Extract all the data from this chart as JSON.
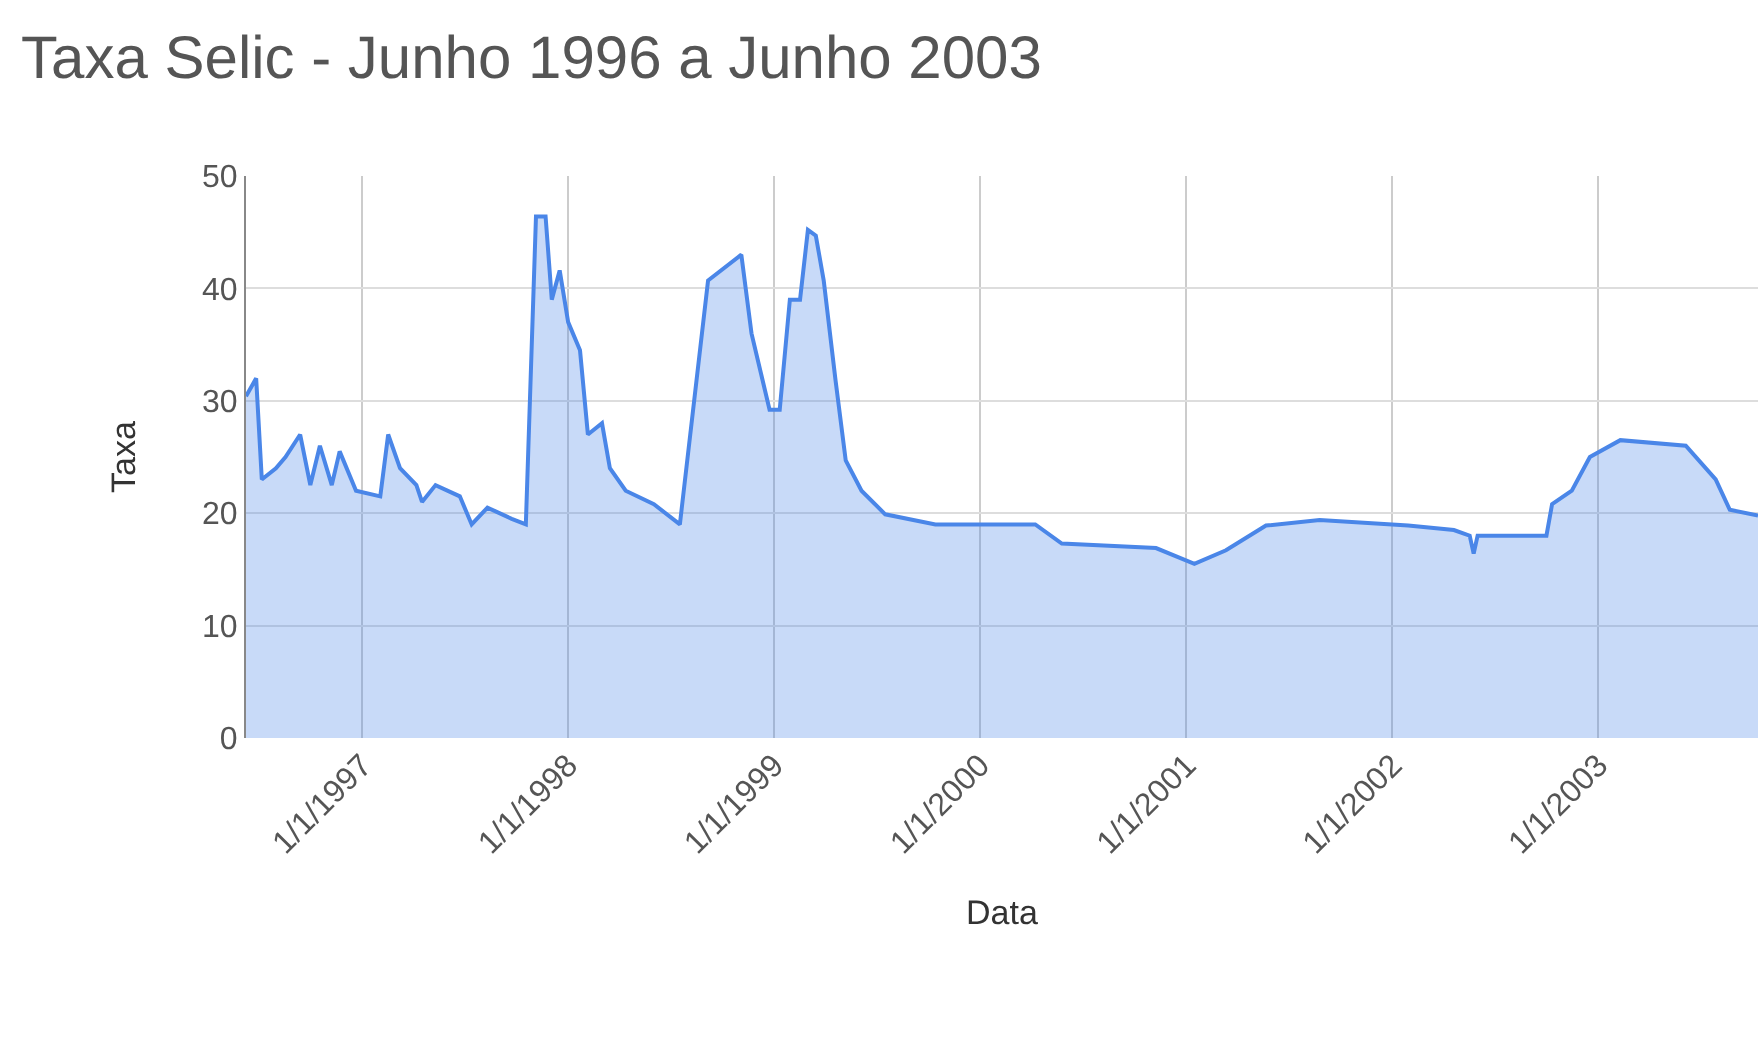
{
  "chart_data": {
    "type": "area",
    "title": "Taxa Selic - Junho 1996 a Junho 2003",
    "xlabel": "Data",
    "ylabel": "Taxa",
    "x": [
      "1996-06-09",
      "1996-06-27",
      "1996-07-07",
      "1996-08-01",
      "1996-08-18",
      "1996-09-13",
      "1996-10-01",
      "1996-10-18",
      "1996-11-08",
      "1996-11-22",
      "1996-12-21",
      "1997-02-02",
      "1997-02-16",
      "1997-03-09",
      "1997-04-07",
      "1997-04-17",
      "1997-05-11",
      "1997-06-23",
      "1997-07-14",
      "1997-08-11",
      "1997-09-23",
      "1997-10-18",
      "1997-11-05",
      "1997-11-22",
      "1997-12-03",
      "1997-12-17",
      "1998-01-01",
      "1998-01-22",
      "1998-02-05",
      "1998-03-02",
      "1998-03-16",
      "1998-04-13",
      "1998-06-02",
      "1998-07-18",
      "1998-09-06",
      "1998-11-04",
      "1998-11-22",
      "1998-12-24",
      "1999-01-11",
      "1999-01-29",
      "1999-02-16",
      "1999-03-02",
      "1999-03-16",
      "1999-03-30",
      "1999-04-20",
      "1999-05-08",
      "1999-06-05",
      "1999-07-17",
      "1999-10-14",
      "2000-04-08",
      "2000-05-25",
      "2000-11-08",
      "2001-01-15",
      "2001-03-12",
      "2001-05-22",
      "2001-08-25",
      "2002-01-29",
      "2002-04-20",
      "2002-05-18",
      "2002-05-25",
      "2002-06-01",
      "2002-10-01",
      "2002-10-11",
      "2002-11-15",
      "2002-12-17",
      "2003-02-09",
      "2003-06-05",
      "2003-07-28",
      "2003-08-22",
      "2003-10-11"
    ],
    "series": [
      {
        "color": "#4a86e8",
        "values": [
          30.4,
          32,
          23,
          24,
          25,
          27,
          22.5,
          26,
          22.5,
          25.5,
          22,
          21.5,
          27,
          24,
          22.5,
          21,
          22.5,
          21.5,
          19,
          20.5,
          19.5,
          19,
          46.4,
          46.4,
          39,
          41.6,
          37,
          34.5,
          27,
          28,
          24,
          22,
          20.8,
          19,
          40.7,
          43,
          36,
          29.2,
          29.2,
          39,
          39,
          45.2,
          44.7,
          40.7,
          31.8,
          24.7,
          22,
          19.9,
          19,
          19,
          17.3,
          16.9,
          15.5,
          16.7,
          18.9,
          19.4,
          18.9,
          18.5,
          18,
          16.4,
          18,
          18,
          20.8,
          22,
          25,
          26.5,
          26,
          23,
          20.3,
          19.8
        ]
      }
    ],
    "xlim": [
      "1996-06-09",
      "2003-10-11"
    ],
    "xticks": [
      {
        "value": "1997-01-01",
        "label": "1/1/1997"
      },
      {
        "value": "1998-01-01",
        "label": "1/1/1998"
      },
      {
        "value": "1999-01-01",
        "label": "1/1/1999"
      },
      {
        "value": "2000-01-01",
        "label": "1/1/2000"
      },
      {
        "value": "2001-01-01",
        "label": "1/1/2001"
      },
      {
        "value": "2002-01-01",
        "label": "1/1/2002"
      },
      {
        "value": "2003-01-01",
        "label": "1/1/2003"
      }
    ],
    "ylim": [
      0,
      50
    ],
    "yticks": [
      0,
      10,
      20,
      30,
      40,
      50
    ],
    "grid": true,
    "legend": false,
    "marker": "none",
    "line_style": "solid"
  }
}
